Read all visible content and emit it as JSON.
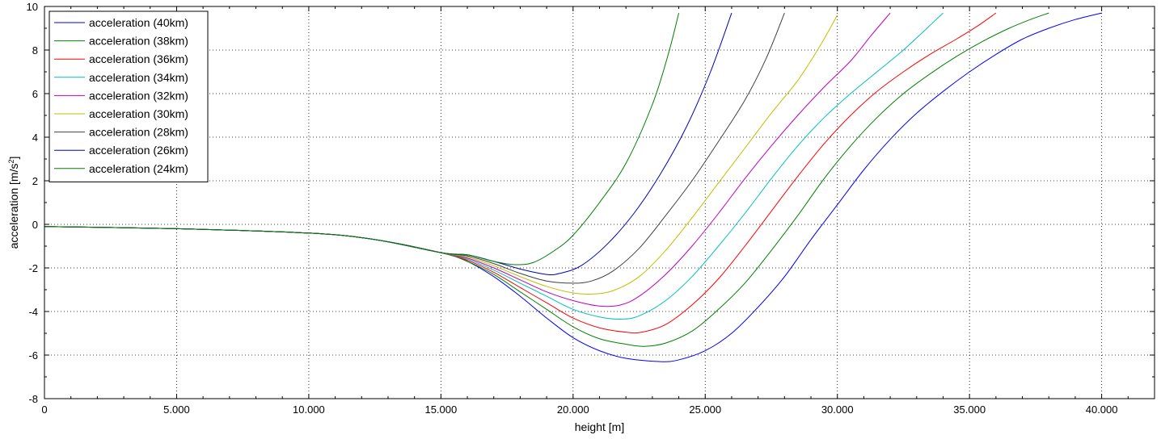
{
  "chart_data": {
    "type": "line",
    "title": "",
    "xlabel": "height [m]",
    "ylabel_main": "acceleration [m/s",
    "ylabel_sup": "2",
    "ylabel_close": "]",
    "xlim": [
      0,
      42000
    ],
    "ylim": [
      -8,
      10
    ],
    "x_ticks": [
      0,
      5000,
      10000,
      15000,
      20000,
      25000,
      30000,
      35000,
      40000
    ],
    "x_tick_labels": [
      "0",
      "5.000",
      "10.000",
      "15.000",
      "20.000",
      "25.000",
      "30.000",
      "35.000",
      "40.000"
    ],
    "y_ticks": [
      -8,
      -6,
      -4,
      -2,
      0,
      2,
      4,
      6,
      8,
      10
    ],
    "y_tick_labels": [
      "-8",
      "-6",
      "-4",
      "-2",
      "0",
      "2",
      "4",
      "6",
      "8",
      "10"
    ],
    "grid": true,
    "legend_position": "top-left",
    "series": [
      {
        "name": "acceleration (40km)",
        "color": "#0000ff",
        "points": [
          [
            0,
            -0.1
          ],
          [
            5000,
            -0.2
          ],
          [
            10000,
            -0.4
          ],
          [
            12500,
            -0.7
          ],
          [
            15000,
            -1.3
          ],
          [
            16000,
            -1.7
          ],
          [
            17000,
            -2.4
          ],
          [
            18000,
            -3.3
          ],
          [
            19000,
            -4.3
          ],
          [
            20000,
            -5.2
          ],
          [
            21000,
            -5.8
          ],
          [
            22000,
            -6.15
          ],
          [
            23300,
            -6.3
          ],
          [
            24000,
            -6.22
          ],
          [
            25000,
            -5.8
          ],
          [
            26000,
            -5.0
          ],
          [
            27000,
            -3.8
          ],
          [
            28000,
            -2.4
          ],
          [
            29000,
            -0.7
          ],
          [
            30000,
            0.9
          ],
          [
            31000,
            2.5
          ],
          [
            32000,
            3.9
          ],
          [
            33000,
            5.1
          ],
          [
            34000,
            6.1
          ],
          [
            35000,
            7.0
          ],
          [
            36000,
            7.8
          ],
          [
            37000,
            8.5
          ],
          [
            38000,
            9.0
          ],
          [
            39000,
            9.4
          ],
          [
            40000,
            9.7
          ]
        ]
      },
      {
        "name": "acceleration (38km)",
        "color": "#008000",
        "points": [
          [
            0,
            -0.1
          ],
          [
            5000,
            -0.2
          ],
          [
            10000,
            -0.4
          ],
          [
            12500,
            -0.7
          ],
          [
            15000,
            -1.3
          ],
          [
            16000,
            -1.7
          ],
          [
            17000,
            -2.3
          ],
          [
            18000,
            -3.1
          ],
          [
            19000,
            -3.9
          ],
          [
            20000,
            -4.7
          ],
          [
            21000,
            -5.25
          ],
          [
            22000,
            -5.5
          ],
          [
            22700,
            -5.6
          ],
          [
            23500,
            -5.45
          ],
          [
            24500,
            -4.9
          ],
          [
            25500,
            -3.9
          ],
          [
            26500,
            -2.7
          ],
          [
            27500,
            -1.2
          ],
          [
            28500,
            0.4
          ],
          [
            29500,
            2.1
          ],
          [
            30500,
            3.6
          ],
          [
            31500,
            4.9
          ],
          [
            32500,
            6.0
          ],
          [
            33500,
            6.9
          ],
          [
            34500,
            7.7
          ],
          [
            35500,
            8.4
          ],
          [
            36500,
            9.0
          ],
          [
            37300,
            9.4
          ],
          [
            38000,
            9.7
          ]
        ]
      },
      {
        "name": "acceleration (36km)",
        "color": "#ff0000",
        "points": [
          [
            0,
            -0.1
          ],
          [
            5000,
            -0.2
          ],
          [
            10000,
            -0.4
          ],
          [
            12500,
            -0.7
          ],
          [
            15000,
            -1.3
          ],
          [
            16000,
            -1.65
          ],
          [
            17000,
            -2.2
          ],
          [
            18000,
            -2.9
          ],
          [
            19000,
            -3.6
          ],
          [
            20000,
            -4.3
          ],
          [
            21000,
            -4.75
          ],
          [
            22000,
            -4.95
          ],
          [
            22600,
            -4.95
          ],
          [
            23500,
            -4.6
          ],
          [
            24500,
            -3.7
          ],
          [
            25500,
            -2.5
          ],
          [
            26500,
            -1.0
          ],
          [
            27500,
            0.6
          ],
          [
            28500,
            2.2
          ],
          [
            29500,
            3.7
          ],
          [
            30500,
            5.0
          ],
          [
            31500,
            6.1
          ],
          [
            32500,
            7.0
          ],
          [
            33500,
            7.8
          ],
          [
            34500,
            8.5
          ],
          [
            35300,
            9.1
          ],
          [
            36000,
            9.7
          ]
        ]
      },
      {
        "name": "acceleration (34km)",
        "color": "#00bfbf",
        "points": [
          [
            0,
            -0.1
          ],
          [
            5000,
            -0.2
          ],
          [
            10000,
            -0.4
          ],
          [
            12500,
            -0.7
          ],
          [
            15000,
            -1.3
          ],
          [
            16000,
            -1.6
          ],
          [
            17000,
            -2.1
          ],
          [
            18000,
            -2.7
          ],
          [
            19000,
            -3.3
          ],
          [
            20000,
            -3.9
          ],
          [
            21000,
            -4.25
          ],
          [
            21800,
            -4.35
          ],
          [
            22500,
            -4.2
          ],
          [
            23500,
            -3.5
          ],
          [
            24500,
            -2.4
          ],
          [
            25500,
            -1.0
          ],
          [
            26500,
            0.5
          ],
          [
            27500,
            2.1
          ],
          [
            28500,
            3.6
          ],
          [
            29500,
            4.9
          ],
          [
            30500,
            6.0
          ],
          [
            31500,
            7.0
          ],
          [
            32500,
            8.0
          ],
          [
            33300,
            8.9
          ],
          [
            34000,
            9.7
          ]
        ]
      },
      {
        "name": "acceleration (32km)",
        "color": "#bf00bf",
        "points": [
          [
            0,
            -0.1
          ],
          [
            5000,
            -0.2
          ],
          [
            10000,
            -0.4
          ],
          [
            12500,
            -0.7
          ],
          [
            15000,
            -1.3
          ],
          [
            16000,
            -1.55
          ],
          [
            17000,
            -2.0
          ],
          [
            18000,
            -2.55
          ],
          [
            19000,
            -3.1
          ],
          [
            20000,
            -3.5
          ],
          [
            21000,
            -3.75
          ],
          [
            21800,
            -3.7
          ],
          [
            22500,
            -3.3
          ],
          [
            23500,
            -2.3
          ],
          [
            24500,
            -1.0
          ],
          [
            25500,
            0.5
          ],
          [
            26500,
            2.1
          ],
          [
            27500,
            3.6
          ],
          [
            28500,
            5.0
          ],
          [
            29500,
            6.3
          ],
          [
            30500,
            7.5
          ],
          [
            31300,
            8.7
          ],
          [
            32000,
            9.7
          ]
        ]
      },
      {
        "name": "acceleration (30km)",
        "color": "#bfbf00",
        "points": [
          [
            0,
            -0.1
          ],
          [
            5000,
            -0.2
          ],
          [
            10000,
            -0.4
          ],
          [
            12500,
            -0.7
          ],
          [
            15000,
            -1.3
          ],
          [
            16000,
            -1.5
          ],
          [
            17000,
            -1.9
          ],
          [
            18000,
            -2.4
          ],
          [
            19000,
            -2.85
          ],
          [
            20000,
            -3.15
          ],
          [
            20700,
            -3.2
          ],
          [
            21500,
            -3.05
          ],
          [
            22500,
            -2.4
          ],
          [
            23500,
            -1.2
          ],
          [
            24500,
            0.3
          ],
          [
            25500,
            1.9
          ],
          [
            26500,
            3.5
          ],
          [
            27500,
            5.1
          ],
          [
            28500,
            6.6
          ],
          [
            29300,
            8.1
          ],
          [
            30000,
            9.6
          ]
        ]
      },
      {
        "name": "acceleration (28km)",
        "color": "#404040",
        "points": [
          [
            0,
            -0.1
          ],
          [
            5000,
            -0.2
          ],
          [
            10000,
            -0.4
          ],
          [
            12500,
            -0.7
          ],
          [
            15000,
            -1.3
          ],
          [
            16000,
            -1.45
          ],
          [
            17000,
            -1.8
          ],
          [
            18000,
            -2.25
          ],
          [
            19000,
            -2.6
          ],
          [
            20000,
            -2.7
          ],
          [
            20700,
            -2.6
          ],
          [
            21500,
            -2.15
          ],
          [
            22500,
            -1.1
          ],
          [
            23500,
            0.4
          ],
          [
            24500,
            2.0
          ],
          [
            25500,
            3.8
          ],
          [
            26500,
            5.7
          ],
          [
            27300,
            7.6
          ],
          [
            28000,
            9.7
          ]
        ]
      },
      {
        "name": "acceleration (26km)",
        "color": "#0000bf",
        "points": [
          [
            0,
            -0.1
          ],
          [
            5000,
            -0.2
          ],
          [
            10000,
            -0.4
          ],
          [
            12500,
            -0.7
          ],
          [
            15000,
            -1.3
          ],
          [
            16000,
            -1.4
          ],
          [
            17000,
            -1.7
          ],
          [
            18000,
            -2.05
          ],
          [
            19000,
            -2.3
          ],
          [
            19500,
            -2.25
          ],
          [
            20300,
            -1.9
          ],
          [
            21300,
            -0.9
          ],
          [
            22300,
            0.5
          ],
          [
            23300,
            2.3
          ],
          [
            24300,
            4.5
          ],
          [
            25200,
            7.0
          ],
          [
            26000,
            9.7
          ]
        ]
      },
      {
        "name": "acceleration (24km)",
        "color": "#007f00",
        "points": [
          [
            0,
            -0.1
          ],
          [
            5000,
            -0.2
          ],
          [
            10000,
            -0.4
          ],
          [
            12500,
            -0.7
          ],
          [
            15000,
            -1.3
          ],
          [
            16000,
            -1.4
          ],
          [
            17000,
            -1.7
          ],
          [
            17800,
            -1.85
          ],
          [
            18500,
            -1.75
          ],
          [
            19300,
            -1.2
          ],
          [
            20000,
            -0.5
          ],
          [
            21000,
            1.0
          ],
          [
            22000,
            2.8
          ],
          [
            23000,
            5.5
          ],
          [
            23600,
            7.8
          ],
          [
            24000,
            9.7
          ]
        ]
      }
    ]
  }
}
